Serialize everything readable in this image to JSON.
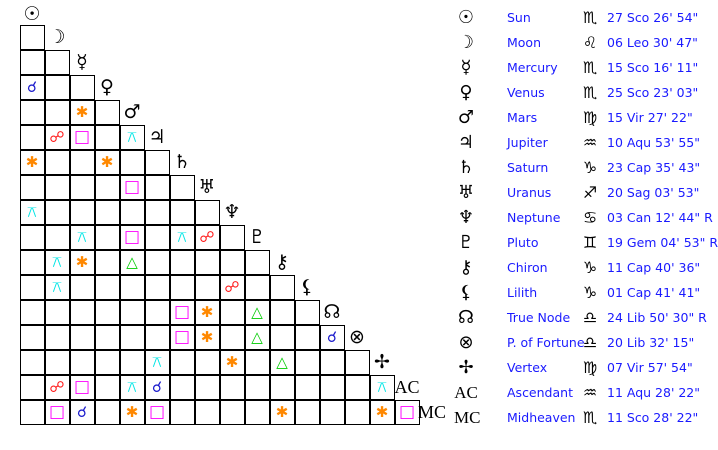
{
  "aspect_styles": {
    "conjunction": {
      "glyph": "☌",
      "color": "#1a1acc"
    },
    "opposition": {
      "glyph": "☍",
      "color": "#ff1a1a"
    },
    "square": {
      "glyph": "□",
      "color": "#ff00ff"
    },
    "sextile": {
      "glyph": "✱",
      "color": "#ff8800"
    },
    "trine": {
      "glyph": "△",
      "color": "#00cc00"
    },
    "quincunx": {
      "glyph": "⚻",
      "color": "#00e5e5"
    }
  },
  "planets": [
    {
      "name": "Sun",
      "glyph": "☉",
      "sign_glyph": "♏",
      "position": "27 Sco 26' 54\""
    },
    {
      "name": "Moon",
      "glyph": "☽",
      "sign_glyph": "♌",
      "position": "06 Leo 30' 47\""
    },
    {
      "name": "Mercury",
      "glyph": "☿",
      "sign_glyph": "♏",
      "position": "15 Sco 16' 11\""
    },
    {
      "name": "Venus",
      "glyph": "♀",
      "sign_glyph": "♏",
      "position": "25 Sco 23' 03\""
    },
    {
      "name": "Mars",
      "glyph": "♂",
      "sign_glyph": "♍",
      "position": "15 Vir 27' 22\""
    },
    {
      "name": "Jupiter",
      "glyph": "♃",
      "sign_glyph": "♒",
      "position": "10 Aqu 53' 55\""
    },
    {
      "name": "Saturn",
      "glyph": "♄",
      "sign_glyph": "♑",
      "position": "23 Cap 35' 43\""
    },
    {
      "name": "Uranus",
      "glyph": "♅",
      "sign_glyph": "♐",
      "position": "20 Sag 03' 53\""
    },
    {
      "name": "Neptune",
      "glyph": "♆",
      "sign_glyph": "♋",
      "position": "03 Can 12' 44\" R"
    },
    {
      "name": "Pluto",
      "glyph": "♇",
      "sign_glyph": "♊",
      "position": "19 Gem 04' 53\" R"
    },
    {
      "name": "Chiron",
      "glyph": "⚷",
      "sign_glyph": "♑",
      "position": "11 Cap 40' 36\""
    },
    {
      "name": "Lilith",
      "glyph": "⚸",
      "sign_glyph": "♑",
      "position": "01 Cap 41' 41\""
    },
    {
      "name": "True Node",
      "glyph": "☊",
      "sign_glyph": "♎",
      "position": "24 Lib 50' 30\" R"
    },
    {
      "name": "P. of Fortune",
      "glyph": "⊗",
      "sign_glyph": "♎",
      "position": "20 Lib 32' 15\""
    },
    {
      "name": "Vertex",
      "glyph": "✢",
      "sign_glyph": "♍",
      "position": "07 Vir 57' 54\""
    },
    {
      "name": "Ascendant",
      "glyph": "AC",
      "sign_glyph": "♒",
      "position": "11 Aqu 28' 22\""
    },
    {
      "name": "Midheaven",
      "glyph": "MC",
      "sign_glyph": "♏",
      "position": "11 Sco 28' 22\""
    }
  ],
  "aspects": [
    {
      "a": "Venus",
      "b": "Sun",
      "type": "conjunction"
    },
    {
      "a": "Mars",
      "b": "Mercury",
      "type": "sextile"
    },
    {
      "a": "Jupiter",
      "b": "Moon",
      "type": "opposition"
    },
    {
      "a": "Jupiter",
      "b": "Mercury",
      "type": "square"
    },
    {
      "a": "Jupiter",
      "b": "Mars",
      "type": "quincunx"
    },
    {
      "a": "Saturn",
      "b": "Sun",
      "type": "sextile"
    },
    {
      "a": "Saturn",
      "b": "Venus",
      "type": "sextile"
    },
    {
      "a": "Uranus",
      "b": "Mars",
      "type": "square"
    },
    {
      "a": "Neptune",
      "b": "Sun",
      "type": "quincunx"
    },
    {
      "a": "Pluto",
      "b": "Mercury",
      "type": "quincunx"
    },
    {
      "a": "Pluto",
      "b": "Mars",
      "type": "square"
    },
    {
      "a": "Pluto",
      "b": "Saturn",
      "type": "quincunx"
    },
    {
      "a": "Pluto",
      "b": "Uranus",
      "type": "opposition"
    },
    {
      "a": "Chiron",
      "b": "Moon",
      "type": "quincunx"
    },
    {
      "a": "Chiron",
      "b": "Mercury",
      "type": "sextile"
    },
    {
      "a": "Chiron",
      "b": "Mars",
      "type": "trine"
    },
    {
      "a": "Lilith",
      "b": "Moon",
      "type": "quincunx"
    },
    {
      "a": "Lilith",
      "b": "Neptune",
      "type": "opposition"
    },
    {
      "a": "True Node",
      "b": "Saturn",
      "type": "square"
    },
    {
      "a": "True Node",
      "b": "Uranus",
      "type": "sextile"
    },
    {
      "a": "True Node",
      "b": "Pluto",
      "type": "trine"
    },
    {
      "a": "P. of Fortune",
      "b": "Saturn",
      "type": "square"
    },
    {
      "a": "P. of Fortune",
      "b": "Uranus",
      "type": "sextile"
    },
    {
      "a": "P. of Fortune",
      "b": "Pluto",
      "type": "trine"
    },
    {
      "a": "P. of Fortune",
      "b": "True Node",
      "type": "conjunction"
    },
    {
      "a": "Vertex",
      "b": "Jupiter",
      "type": "quincunx"
    },
    {
      "a": "Vertex",
      "b": "Neptune",
      "type": "sextile"
    },
    {
      "a": "Vertex",
      "b": "Chiron",
      "type": "trine"
    },
    {
      "a": "Ascendant",
      "b": "Moon",
      "type": "opposition"
    },
    {
      "a": "Ascendant",
      "b": "Mercury",
      "type": "square"
    },
    {
      "a": "Ascendant",
      "b": "Mars",
      "type": "quincunx"
    },
    {
      "a": "Ascendant",
      "b": "Jupiter",
      "type": "conjunction"
    },
    {
      "a": "Ascendant",
      "b": "Vertex",
      "type": "quincunx"
    },
    {
      "a": "Midheaven",
      "b": "Moon",
      "type": "square"
    },
    {
      "a": "Midheaven",
      "b": "Mercury",
      "type": "conjunction"
    },
    {
      "a": "Midheaven",
      "b": "Mars",
      "type": "sextile"
    },
    {
      "a": "Midheaven",
      "b": "Jupiter",
      "type": "square"
    },
    {
      "a": "Midheaven",
      "b": "Chiron",
      "type": "sextile"
    },
    {
      "a": "Midheaven",
      "b": "Vertex",
      "type": "sextile"
    },
    {
      "a": "Midheaven",
      "b": "Ascendant",
      "type": "square"
    }
  ]
}
